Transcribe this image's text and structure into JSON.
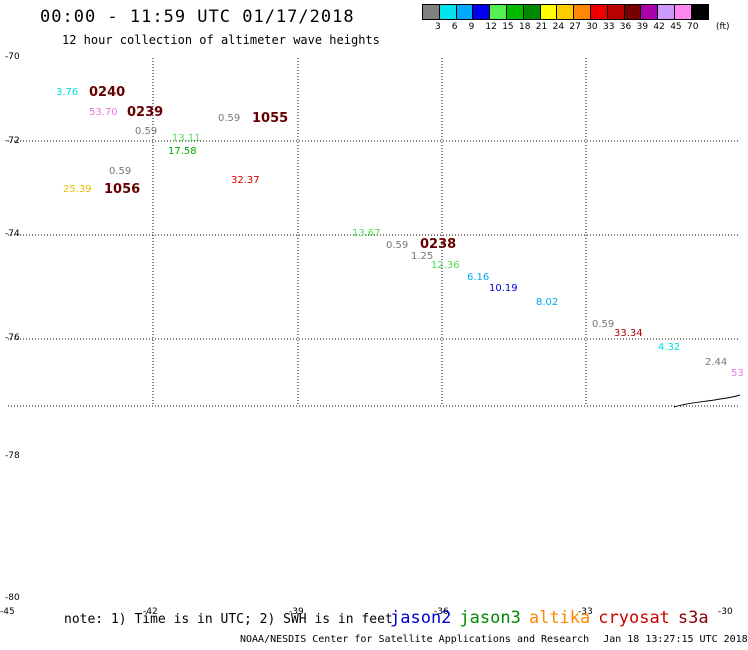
{
  "title": "00:00 - 11:59 UTC 01/17/2018",
  "subtitle": "12 hour collection of altimeter wave heights",
  "legend": {
    "unit": "(ft)",
    "swatches": [
      {
        "label": "3",
        "color": "#808080"
      },
      {
        "label": "6",
        "color": "#00e5ee"
      },
      {
        "label": "9",
        "color": "#00aaff"
      },
      {
        "label": "12",
        "color": "#0000ee"
      },
      {
        "label": "15",
        "color": "#55ee55"
      },
      {
        "label": "18",
        "color": "#00bb00"
      },
      {
        "label": "21",
        "color": "#008800"
      },
      {
        "label": "24",
        "color": "#ffff00"
      },
      {
        "label": "27",
        "color": "#ffcc00"
      },
      {
        "label": "30",
        "color": "#ff8800"
      },
      {
        "label": "33",
        "color": "#ee0000"
      },
      {
        "label": "36",
        "color": "#bb0000"
      },
      {
        "label": "39",
        "color": "#770000"
      },
      {
        "label": "42",
        "color": "#aa00aa"
      },
      {
        "label": "45",
        "color": "#cc99ff"
      },
      {
        "label": "70",
        "color": "#ff88ee"
      },
      {
        "label": "",
        "color": "#000000"
      }
    ]
  },
  "lat_labels": [
    "-70",
    "-72",
    "-74",
    "-76",
    "-78",
    "-80"
  ],
  "lon_labels": [
    "-45",
    "-42",
    "-39",
    "-36",
    "-33",
    "-30"
  ],
  "passes": [
    {
      "text": "0240"
    },
    {
      "text": "0239"
    },
    {
      "text": "1055"
    },
    {
      "text": "1056"
    },
    {
      "text": "0238"
    }
  ],
  "values": [
    {
      "text": "3.76",
      "color": "#00dddd"
    },
    {
      "text": "53.70",
      "color": "#ee77dd"
    },
    {
      "text": "0.59",
      "color": "#777777"
    },
    {
      "text": "0.59",
      "color": "#777777"
    },
    {
      "text": "13.11",
      "color": "#55dd55"
    },
    {
      "text": "17.58",
      "color": "#00aa00"
    },
    {
      "text": "0.59",
      "color": "#777777"
    },
    {
      "text": "25.39",
      "color": "#eebb00"
    },
    {
      "text": "32.37",
      "color": "#dd0000"
    },
    {
      "text": "13.67",
      "color": "#55dd55"
    },
    {
      "text": "0.59",
      "color": "#777777"
    },
    {
      "text": "1.25",
      "color": "#777777"
    },
    {
      "text": "12.36",
      "color": "#55dd55"
    },
    {
      "text": "6.16",
      "color": "#00aaee"
    },
    {
      "text": "10.19",
      "color": "#0000dd"
    },
    {
      "text": "8.02",
      "color": "#00aaee"
    },
    {
      "text": "0.59",
      "color": "#777777"
    },
    {
      "text": "33.34",
      "color": "#aa0000"
    },
    {
      "text": "4.32",
      "color": "#00dddd"
    },
    {
      "text": "2.44",
      "color": "#777777"
    },
    {
      "text": "53",
      "color": "#ee77dd"
    }
  ],
  "note": "note: 1) Time is in UTC; 2) SWH is in feet",
  "satellites": [
    {
      "name": "jason2",
      "color": "#0000cc"
    },
    {
      "name": "jason3",
      "color": "#008800"
    },
    {
      "name": "altika",
      "color": "#ff8800"
    },
    {
      "name": "cryosat",
      "color": "#cc0000"
    },
    {
      "name": "s3a",
      "color": "#880000"
    }
  ],
  "footer": {
    "credit": "NOAA/NESDIS Center for Satellite Applications and Research",
    "timestamp": "Jan 18 13:27:15 UTC 2018"
  }
}
